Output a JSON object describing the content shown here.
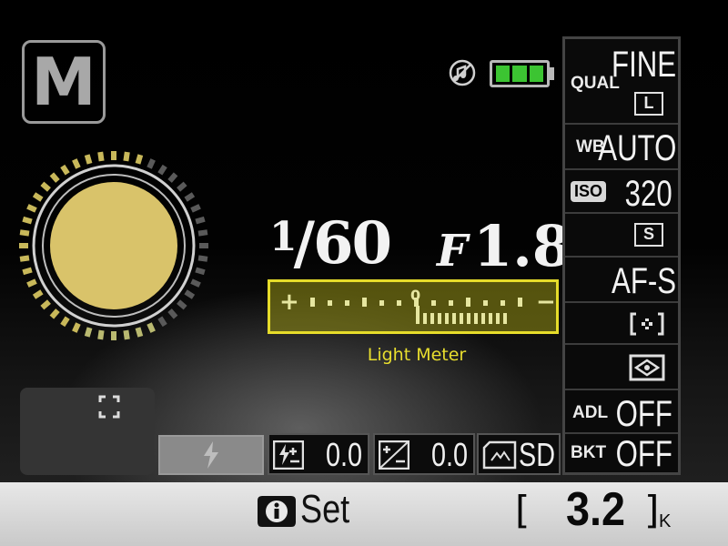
{
  "mode": {
    "letter": "M"
  },
  "exposure": {
    "shutter_numerator": "1",
    "shutter_denominator": "60",
    "aperture_prefix": "F",
    "aperture_value": "1.8"
  },
  "meter": {
    "caption": "Light Meter",
    "plus": "+",
    "minus": "−",
    "zero": "0",
    "level": 0
  },
  "settings": {
    "quality": {
      "label": "QUAL",
      "value": "FINE",
      "size": "L"
    },
    "white_balance": {
      "label": "WB",
      "value": "AUTO"
    },
    "iso": {
      "label": "ISO",
      "value": "320"
    },
    "release_mode": {
      "value": "S"
    },
    "focus_mode": {
      "value": "AF-S"
    },
    "adl": {
      "label": "ADL",
      "value": "OFF"
    },
    "bracketing": {
      "label": "BKT",
      "value": "OFF"
    }
  },
  "bottom": {
    "flash_comp": "0.0",
    "exposure_comp": "0.0",
    "card": "SD"
  },
  "status": {
    "set_label": "Set",
    "shots_open": "[",
    "shots_value": "3.2",
    "shots_close": "]",
    "shots_unit": "K"
  },
  "battery": {
    "bars": 3,
    "color": "#3cc432"
  },
  "accent": {
    "meter_yellow": "#e6dc2a",
    "dial_fill": "#d9c36a"
  },
  "icons": [
    "flash-off-beep-icon",
    "battery-icon",
    "af-area-icon",
    "flash-mode-icon",
    "flash-compensation-icon",
    "exposure-compensation-icon",
    "sd-card-icon",
    "info-button-icon",
    "metering-icon",
    "af-area-mode-icon"
  ]
}
